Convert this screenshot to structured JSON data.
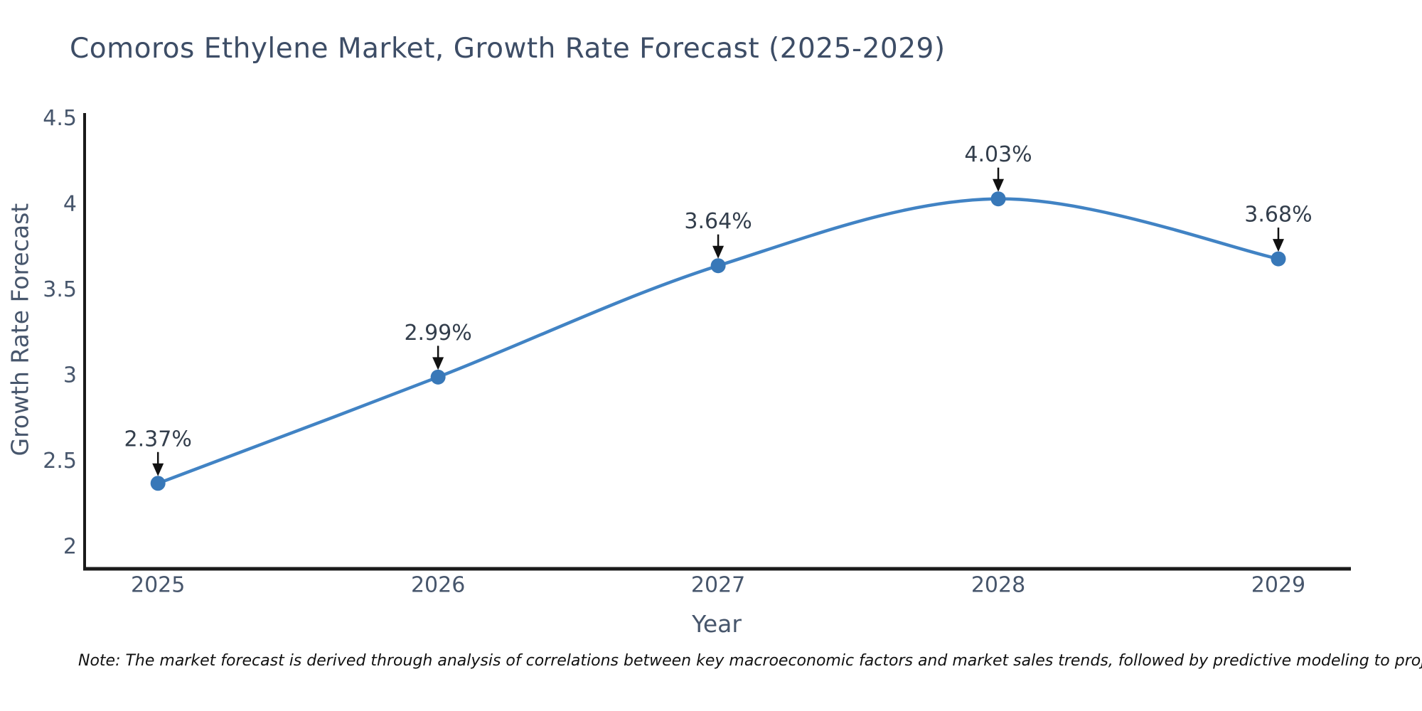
{
  "title": "Comoros Ethylene Market, Growth Rate Forecast (2025-2029)",
  "note": "Note: The market forecast is derived through analysis of correlations between key macroeconomic factors and market sales trends, followed by predictive modeling to project future sales",
  "colors": {
    "line": "#4183c4",
    "marker": "#3878b8",
    "axis_line": "#1a1a1a",
    "arrow": "#111111",
    "title_text": "#3d4d66",
    "tick_text": "#47566c",
    "annotation_text": "#333e4c",
    "background": "#ffffff"
  },
  "chart_data": {
    "type": "line",
    "title": "Comoros Ethylene Market, Growth Rate Forecast (2025-2029)",
    "xlabel": "Year",
    "ylabel": "Growth Rate Forecast",
    "x": [
      2025,
      2026,
      2027,
      2028,
      2029
    ],
    "values": [
      2.37,
      2.99,
      3.64,
      4.03,
      3.68
    ],
    "point_labels": [
      "2.37%",
      "2.99%",
      "3.64%",
      "4.03%",
      "3.68%"
    ],
    "x_tick_labels": [
      "2025",
      "2026",
      "2027",
      "2028",
      "2029"
    ],
    "y_tick_values": [
      2,
      2.5,
      3,
      3.5,
      4,
      4.5
    ],
    "y_tick_labels": [
      "2",
      "2.5",
      "3",
      "3.5",
      "4",
      "4.5"
    ],
    "xlim": [
      2024.733,
      2029.259
    ],
    "ylim": [
      1.871,
      4.531
    ],
    "line_shape": "spline",
    "grid": false,
    "legend_position": "none"
  }
}
